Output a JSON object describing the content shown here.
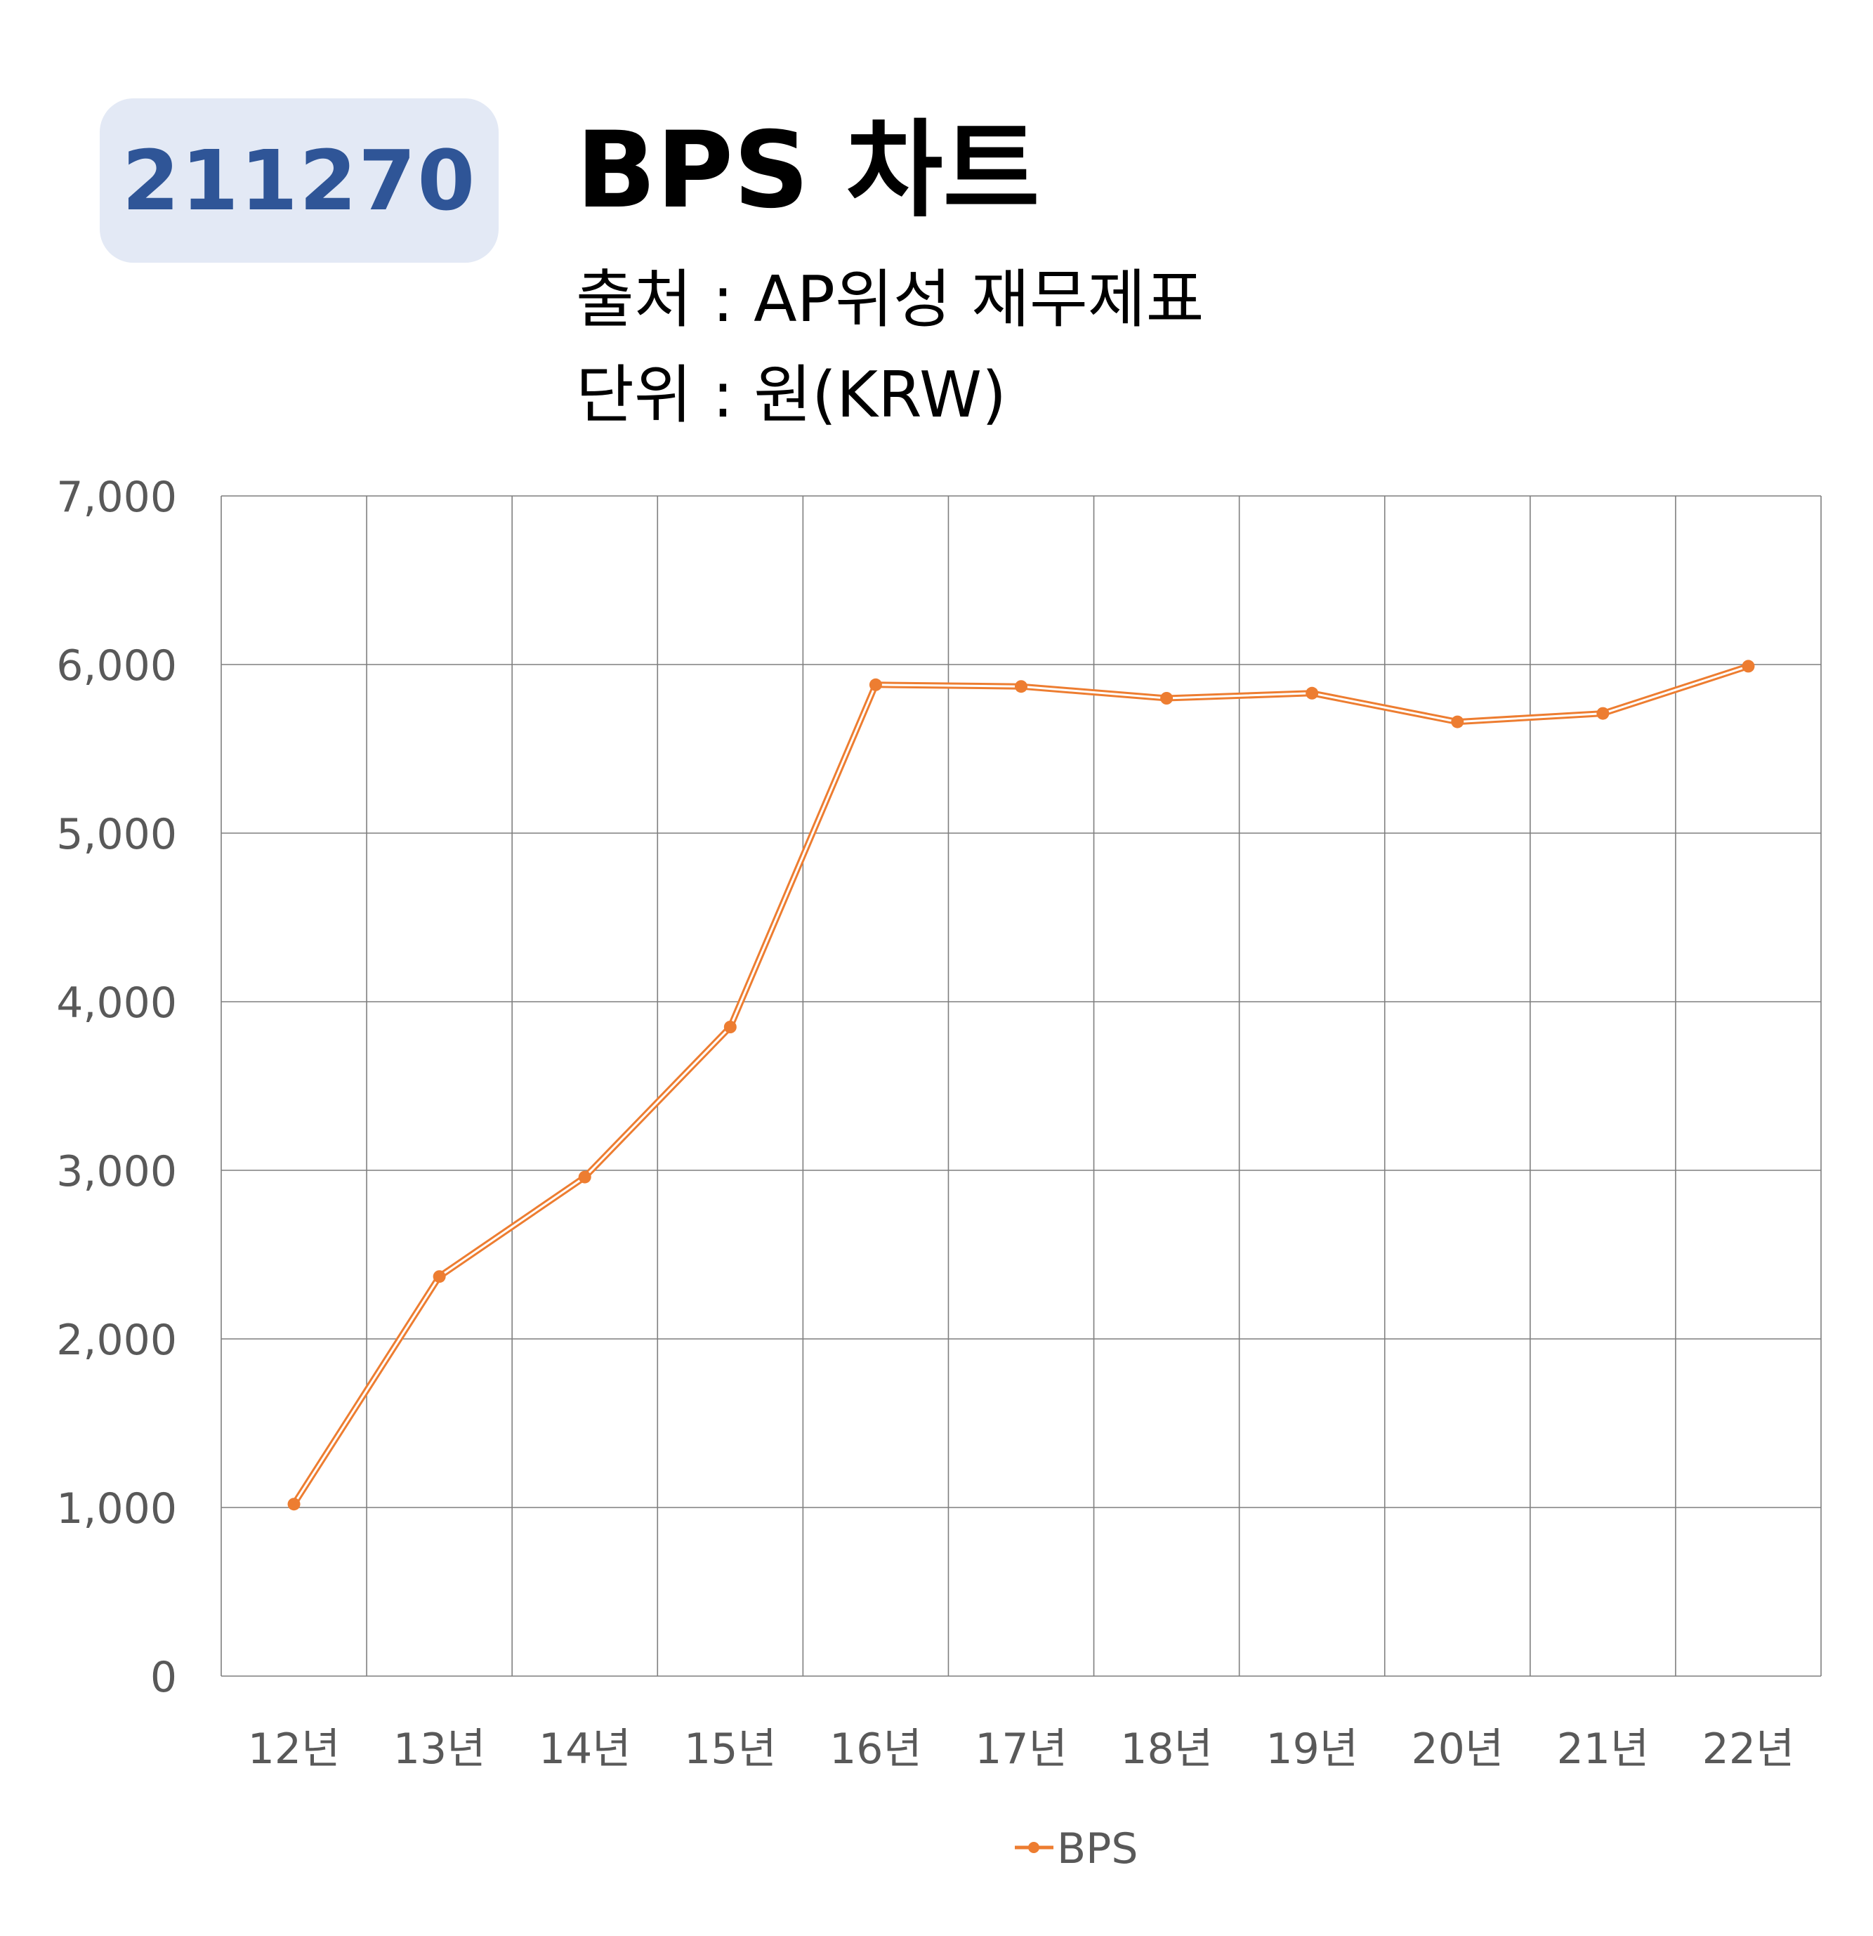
{
  "badge": {
    "code": "211270"
  },
  "header": {
    "title": "BPS 차트",
    "source": "출처 : AP위성 재무제표",
    "unit": "단위 : 원(KRW)"
  },
  "colors": {
    "badge_bg": "#e3e9f5",
    "badge_text": "#2f5597",
    "series": "#ed7d31",
    "grid": "#7f7f7f",
    "tick_text": "#595959"
  },
  "chart_data": {
    "type": "line",
    "categories": [
      "12년",
      "13년",
      "14년",
      "15년",
      "16년",
      "17년",
      "18년",
      "19년",
      "20년",
      "21년",
      "22년"
    ],
    "series": [
      {
        "name": "BPS",
        "values": [
          1020,
          2370,
          2960,
          3850,
          5880,
          5870,
          5800,
          5830,
          5660,
          5710,
          5990
        ]
      }
    ],
    "ylim": [
      0,
      7000
    ],
    "yticks": [
      "0",
      "1,000",
      "2,000",
      "3,000",
      "4,000",
      "5,000",
      "6,000",
      "7,000"
    ],
    "grid": true,
    "legend": "bottom",
    "xlabel": "",
    "ylabel": ""
  }
}
